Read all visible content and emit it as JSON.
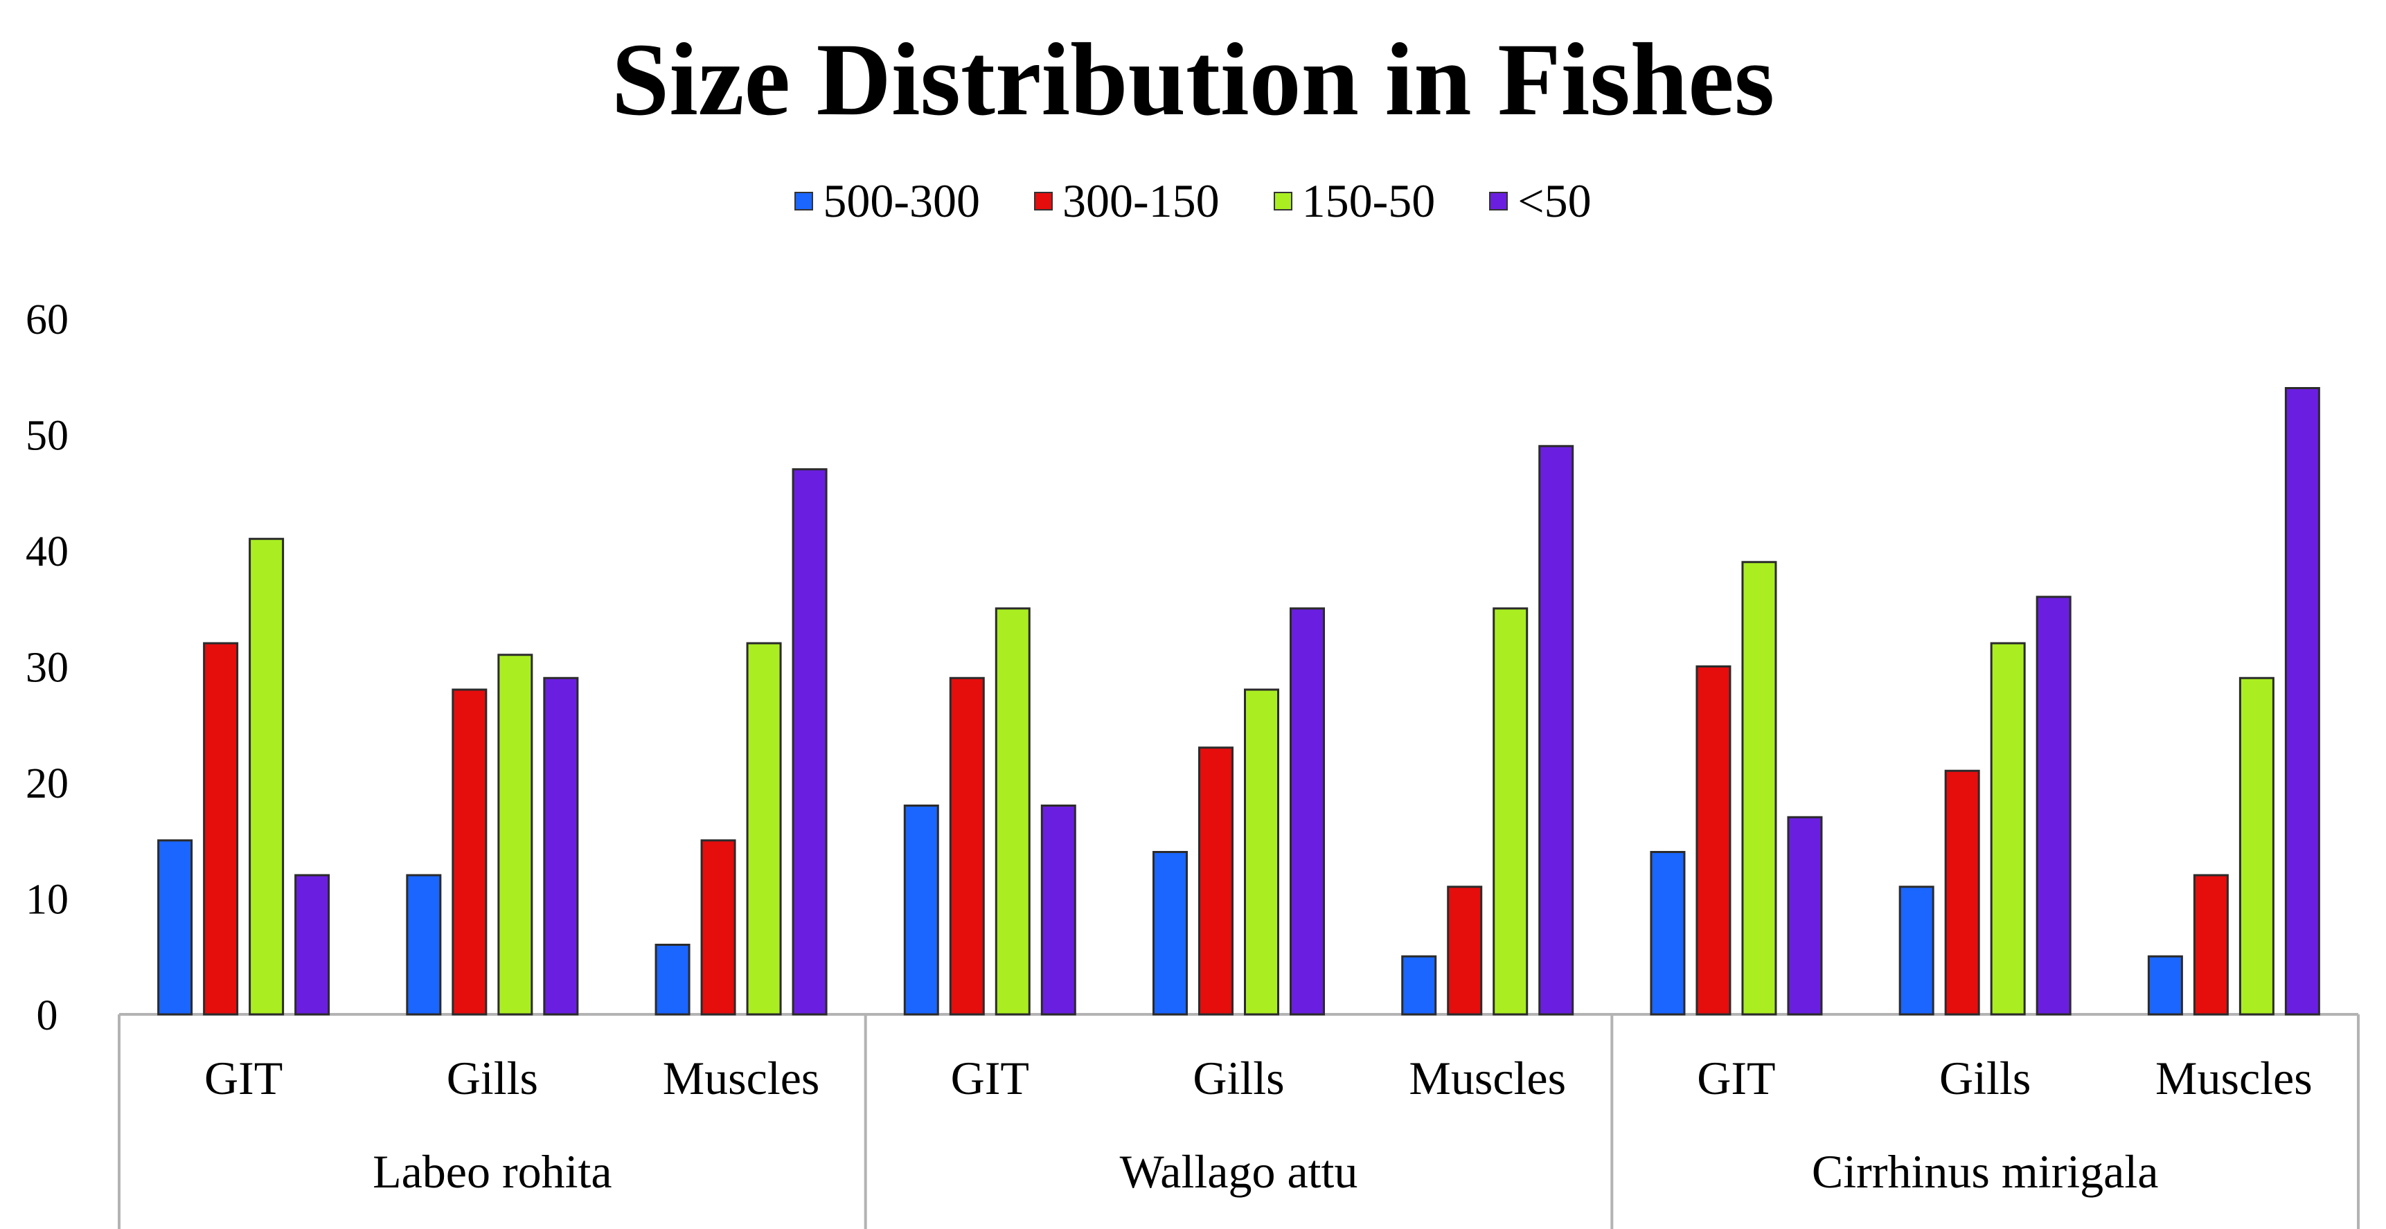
{
  "chart_data": {
    "type": "bar",
    "title": "Size Distribution in Fishes",
    "xlabel": "",
    "ylabel": "",
    "ylim": [
      0,
      60
    ],
    "yticks": [
      0,
      10,
      20,
      30,
      40,
      50,
      60
    ],
    "grid": false,
    "legend_position": "top-center",
    "groups": [
      {
        "name": "Labeo rohita",
        "categories": [
          "GIT",
          "Gills",
          "Muscles"
        ]
      },
      {
        "name": "Wallago attu",
        "categories": [
          "GIT",
          "Gills",
          "Muscles"
        ]
      },
      {
        "name": "Cirrhinus mirigala",
        "categories": [
          "GIT",
          "Gills",
          "Muscles"
        ]
      }
    ],
    "categories": [
      "Labeo rohita - GIT",
      "Labeo rohita - Gills",
      "Labeo rohita - Muscles",
      "Wallago attu - GIT",
      "Wallago attu - Gills",
      "Wallago attu - Muscles",
      "Cirrhinus mirigala - GIT",
      "Cirrhinus mirigala - Gills",
      "Cirrhinus mirigala - Muscles"
    ],
    "series": [
      {
        "name": "500-300",
        "color": "#1a66ff",
        "values": [
          15,
          12,
          6,
          18,
          14,
          5,
          14,
          11,
          5
        ]
      },
      {
        "name": "300-150",
        "color": "#e60d0d",
        "values": [
          32,
          28,
          15,
          29,
          23,
          11,
          30,
          21,
          12
        ]
      },
      {
        "name": "150-50",
        "color": "#aaee22",
        "values": [
          41,
          31,
          32,
          35,
          28,
          35,
          39,
          32,
          29
        ]
      },
      {
        "name": "<50",
        "color": "#6a1fe0",
        "values": [
          12,
          29,
          47,
          18,
          35,
          49,
          17,
          36,
          54
        ]
      }
    ]
  }
}
